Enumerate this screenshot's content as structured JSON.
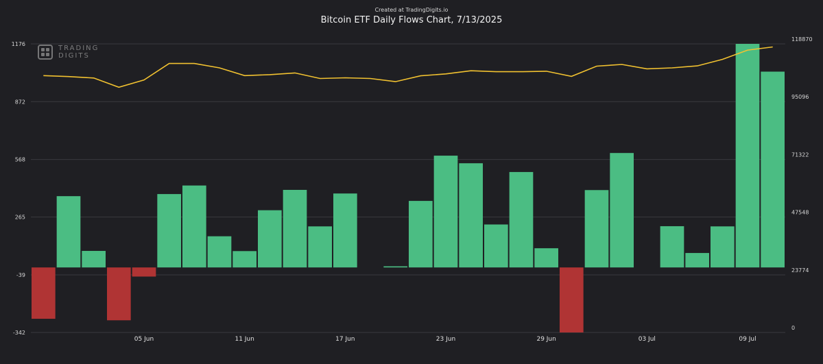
{
  "credit": "Created at TradingDigits.io",
  "logo": {
    "line1": "TRADING",
    "line2": "DIGITS"
  },
  "chart_data": {
    "type": "bar",
    "title": "Bitcoin ETF Daily Flows Chart, 7/13/2025",
    "left_axis": {
      "ticks": [
        -342,
        -39,
        265,
        568,
        872,
        1176
      ],
      "ylim": [
        -342,
        1176
      ]
    },
    "right_axis": {
      "ticks": [
        0,
        23774,
        47548,
        71322,
        95096,
        118870
      ],
      "ylim": [
        0,
        118870
      ]
    },
    "x_tick_labels": [
      {
        "label": "05 Jun",
        "index": 4
      },
      {
        "label": "11 Jun",
        "index": 8
      },
      {
        "label": "17 Jun",
        "index": 12
      },
      {
        "label": "23 Jun",
        "index": 16
      },
      {
        "label": "29 Jun",
        "index": 20
      },
      {
        "label": "03 Jul",
        "index": 24
      },
      {
        "label": "09 Jul",
        "index": 28
      }
    ],
    "colors": {
      "positive": "#4bbd83",
      "negative": "#b03434",
      "line": "#f2c230",
      "grid": "#3a3a3f"
    },
    "bars": [
      {
        "x": "2025-06-02",
        "value": -270
      },
      {
        "x": "2025-06-03",
        "value": 375
      },
      {
        "x": "2025-06-04",
        "value": 87
      },
      {
        "x": "2025-06-05",
        "value": -278
      },
      {
        "x": "2025-06-06",
        "value": -48
      },
      {
        "x": "2025-06-09",
        "value": 386
      },
      {
        "x": "2025-06-10",
        "value": 431
      },
      {
        "x": "2025-06-11",
        "value": 164
      },
      {
        "x": "2025-06-12",
        "value": 86
      },
      {
        "x": "2025-06-13",
        "value": 301
      },
      {
        "x": "2025-06-16",
        "value": 408
      },
      {
        "x": "2025-06-17",
        "value": 216
      },
      {
        "x": "2025-06-18",
        "value": 389
      },
      {
        "x": "2025-06-19",
        "value": null
      },
      {
        "x": "2025-06-20",
        "value": 6
      },
      {
        "x": "2025-06-23",
        "value": 350
      },
      {
        "x": "2025-06-24",
        "value": 588
      },
      {
        "x": "2025-06-25",
        "value": 548
      },
      {
        "x": "2025-06-26",
        "value": 226
      },
      {
        "x": "2025-06-27",
        "value": 502
      },
      {
        "x": "2025-06-30",
        "value": 101
      },
      {
        "x": "2025-07-01",
        "value": -342
      },
      {
        "x": "2025-07-02",
        "value": 407
      },
      {
        "x": "2025-07-03",
        "value": 602
      },
      {
        "x": "2025-07-04",
        "value": null
      },
      {
        "x": "2025-07-07",
        "value": 217
      },
      {
        "x": "2025-07-08",
        "value": 76
      },
      {
        "x": "2025-07-09",
        "value": 216
      },
      {
        "x": "2025-07-10",
        "value": 1176
      },
      {
        "x": "2025-07-11",
        "value": 1030
      }
    ],
    "price_line": [
      105800,
      105400,
      104800,
      101000,
      104000,
      110800,
      110800,
      109000,
      105800,
      106200,
      106900,
      104600,
      104900,
      104600,
      103300,
      105700,
      106500,
      107800,
      107400,
      107400,
      107600,
      105500,
      109700,
      110400,
      108600,
      109000,
      109800,
      112500,
      116300,
      117600
    ]
  }
}
